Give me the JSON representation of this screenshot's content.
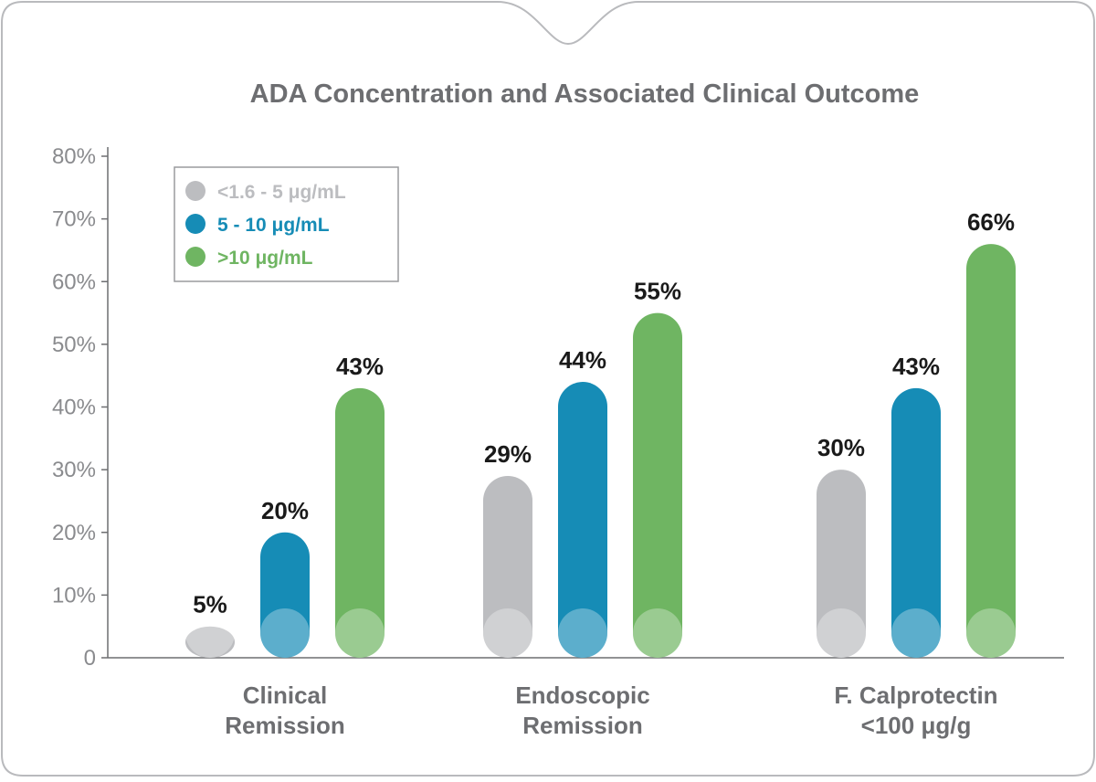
{
  "chart_data": {
    "type": "bar",
    "title": "ADA Concentration and Associated Clinical Outcome",
    "xlabel": "",
    "ylabel": "",
    "ylim": [
      0,
      80
    ],
    "yticks": [
      0,
      10,
      20,
      30,
      40,
      50,
      60,
      70,
      80
    ],
    "ytick_labels": [
      "0",
      "10%",
      "20%",
      "30%",
      "40%",
      "50%",
      "60%",
      "70%",
      "80%"
    ],
    "categories": [
      [
        "Clinical",
        "Remission"
      ],
      [
        "Endoscopic",
        "Remission"
      ],
      [
        "F. Calprotectin",
        "<100 μg/g"
      ]
    ],
    "series": [
      {
        "name": "<1.6 - 5 μg/mL",
        "color": "#bcbdc0",
        "values": [
          5,
          29,
          30
        ],
        "labels": [
          "5%",
          "29%",
          "30%"
        ]
      },
      {
        "name": "5 - 10 μg/mL",
        "color": "#168cb6",
        "values": [
          20,
          44,
          43
        ],
        "labels": [
          "20%",
          "44%",
          "43%"
        ]
      },
      {
        "name": ">10 μg/mL",
        "color": "#6fb562",
        "values": [
          43,
          55,
          66
        ],
        "labels": [
          "43%",
          "55%",
          "66%"
        ]
      }
    ],
    "legend_position": "top-left",
    "grid": false
  }
}
